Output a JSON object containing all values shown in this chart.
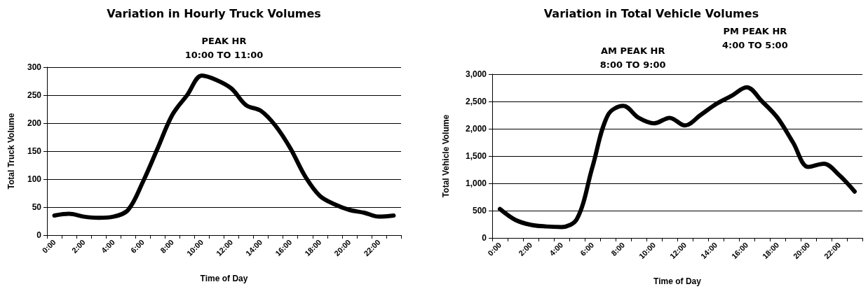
{
  "chart_data": [
    {
      "type": "line",
      "title": "Variation in Hourly Truck Volumes",
      "xlabel": "Time of Day",
      "ylabel": "Total Truck Volume",
      "annotations": [
        "PEAK HR\n10:00 TO 11:00"
      ],
      "categories": [
        "0:00",
        null,
        "2:00",
        null,
        "4:00",
        null,
        "6:00",
        null,
        "8:00",
        null,
        "10:00",
        null,
        "12:00",
        null,
        "14:00",
        null,
        "16:00",
        null,
        "18:00",
        null,
        "20:00",
        null,
        "22:00",
        null
      ],
      "series": [
        {
          "color": "#000000",
          "values": [
            35,
            38,
            33,
            31,
            33,
            45,
            95,
            155,
            215,
            250,
            285,
            277,
            262,
            232,
            222,
            195,
            155,
            105,
            70,
            55,
            45,
            40,
            33,
            35
          ]
        }
      ],
      "ylim": [
        0,
        300
      ],
      "yticks": [
        0,
        50,
        100,
        150,
        200,
        250,
        300
      ],
      "grid": "y",
      "marker": "none",
      "line_style": "solid"
    },
    {
      "type": "line",
      "title": "Variation in Total Vehicle Volumes",
      "xlabel": "Time of Day",
      "ylabel": "Total Vehicle Volume",
      "annotations": [
        "AM PEAK HR\n8:00 TO 9:00",
        "PM PEAK HR\n4:00 TO 5:00"
      ],
      "categories": [
        "0:00",
        null,
        "2:00",
        null,
        "4:00",
        null,
        "6:00",
        null,
        "8:00",
        null,
        "10:00",
        null,
        "12:00",
        null,
        "14:00",
        null,
        "16:00",
        null,
        "18:00",
        null,
        "20:00",
        null,
        "22:00",
        null
      ],
      "series": [
        {
          "color": "#000000",
          "values": [
            530,
            330,
            240,
            210,
            200,
            350,
            1300,
            2250,
            2420,
            2200,
            2100,
            2200,
            2060,
            2250,
            2450,
            2600,
            2760,
            2500,
            2200,
            1750,
            1300,
            1360,
            1150,
            850
          ]
        }
      ],
      "ylim": [
        0,
        3000
      ],
      "yticks": [
        0,
        500,
        {
          "value": 1000,
          "label": "1,000"
        },
        {
          "value": 1500,
          "label": "1,500"
        },
        {
          "value": 2000,
          "label": "2,000"
        },
        {
          "value": 2500,
          "label": "2,500"
        },
        {
          "value": 3000,
          "label": "3,000"
        }
      ],
      "grid": "y",
      "marker": "none",
      "line_style": "solid"
    }
  ]
}
